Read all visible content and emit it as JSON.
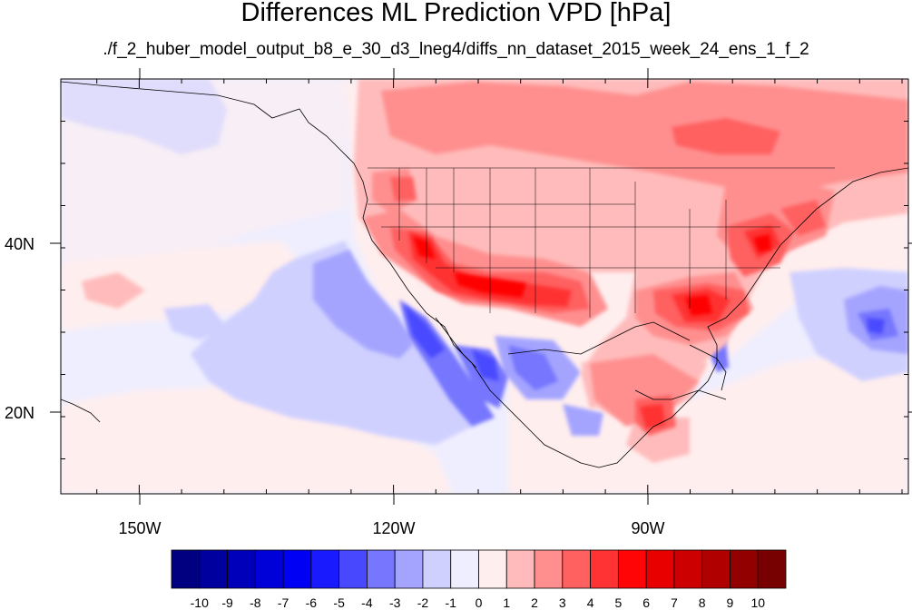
{
  "title": "Differences ML Prediction VPD [hPa]",
  "subtitle": "./f_2_huber_model_output_b8_e_30_d3_lneg4/diffs_nn_dataset_2015_week_24_ens_1_f_2",
  "lon_labels": [
    "150W",
    "120W",
    "90W"
  ],
  "lat_labels": [
    "40N",
    "20N"
  ],
  "colorbar": {
    "labels": [
      "-10",
      "-9",
      "-8",
      "-7",
      "-6",
      "-5",
      "-4",
      "-3",
      "-2",
      "-1",
      "0",
      "1",
      "2",
      "3",
      "4",
      "5",
      "6",
      "7",
      "8",
      "9",
      "10"
    ],
    "colors": [
      "#000080",
      "#00009e",
      "#0000bb",
      "#0000d8",
      "#0000f4",
      "#1a1aff",
      "#4848ff",
      "#7676ff",
      "#a4a4ff",
      "#d0d0ff",
      "#eeeeff",
      "#ffeeee",
      "#ffbbbb",
      "#ff8f8f",
      "#ff6161",
      "#ff3333",
      "#ff0505",
      "#e80000",
      "#cc0000",
      "#b00000",
      "#930000",
      "#770000"
    ]
  },
  "map": {
    "lon_range": [
      -159,
      -62
    ],
    "lat_range": [
      11,
      59
    ]
  }
}
